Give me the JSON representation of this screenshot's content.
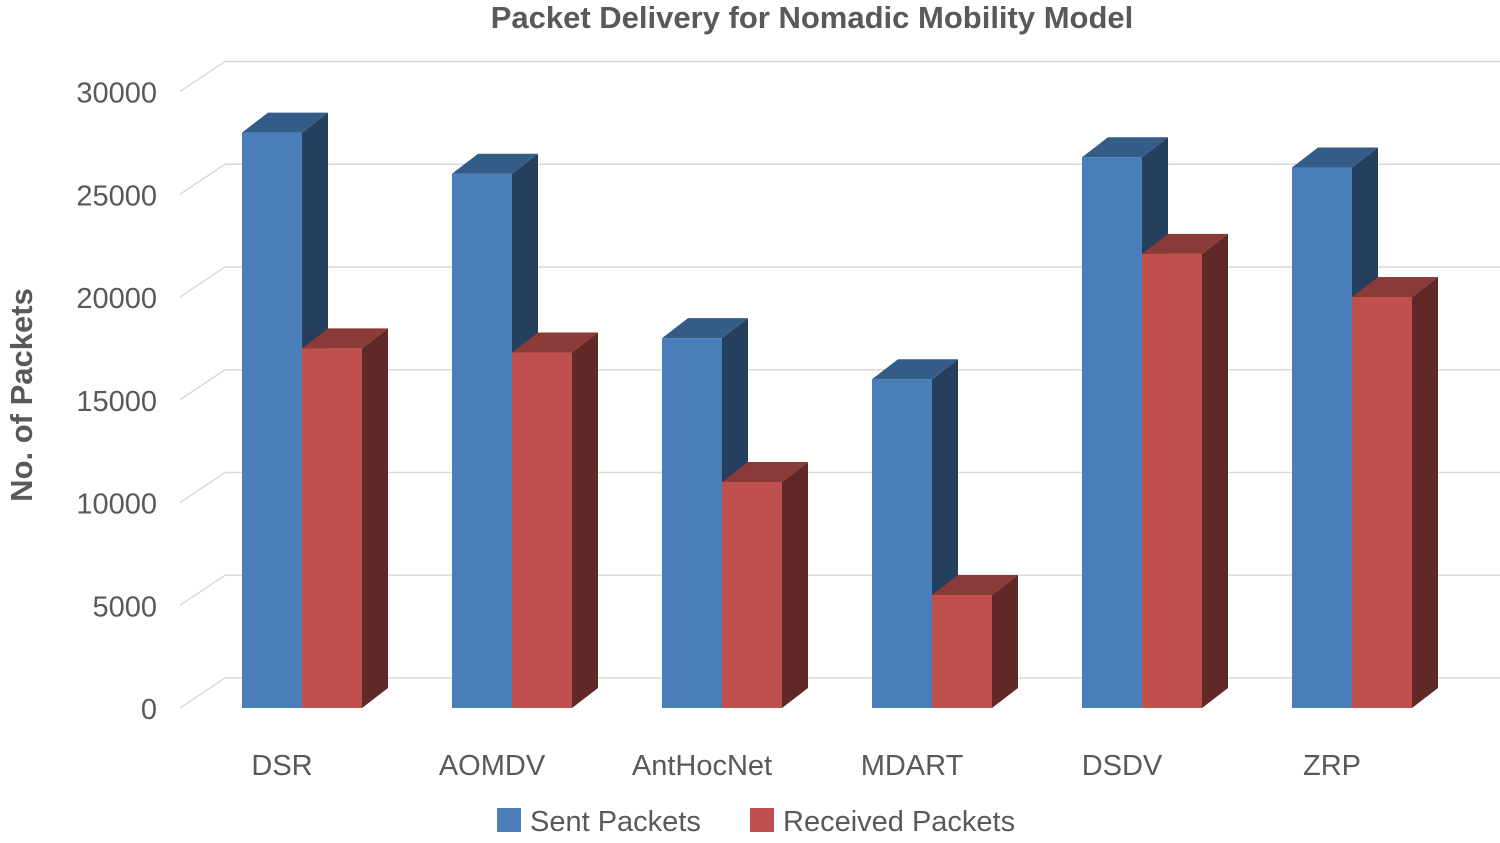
{
  "chart_data": {
    "type": "bar",
    "title": "Packet Delivery for Nomadic Mobility Model",
    "xlabel": "",
    "ylabel": "No. of Packets",
    "categories": [
      "DSR",
      "AOMDV",
      "AntHocNet",
      "MDART",
      "DSDV",
      "ZRP"
    ],
    "series": [
      {
        "name": "Sent Packets",
        "values": [
          28000,
          26000,
          18000,
          16000,
          26800,
          26300
        ],
        "color": "#4a7ebb"
      },
      {
        "name": "Received Packets",
        "values": [
          17500,
          17300,
          11000,
          5500,
          22100,
          20000
        ],
        "color": "#c0504d"
      }
    ],
    "ylim": [
      0,
      30000
    ],
    "yticks": [
      "0",
      "5000",
      "10000",
      "15000",
      "20000",
      "25000",
      "30000"
    ],
    "grid": true,
    "legend_position": "bottom",
    "style": "3d-clustered-column"
  }
}
